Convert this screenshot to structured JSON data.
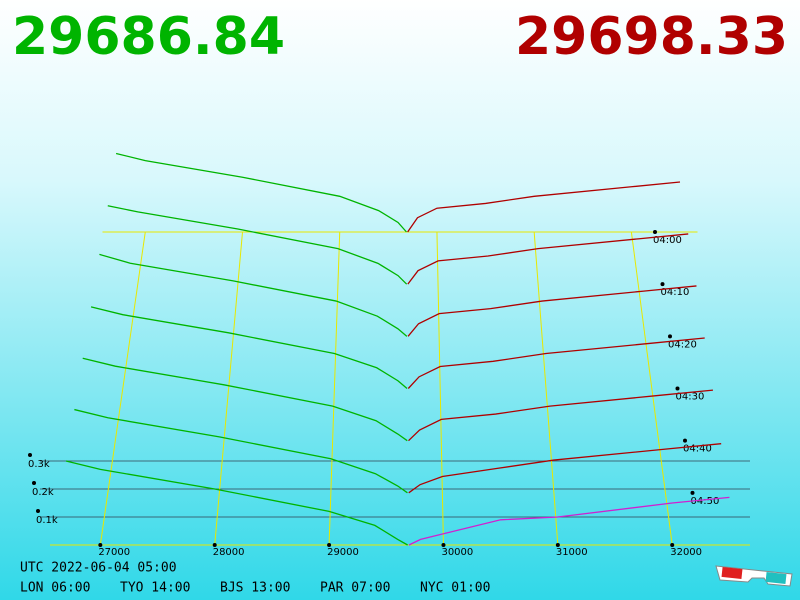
{
  "chart_data": {
    "type": "depth3d",
    "bid": 29686.84,
    "ask": 29698.33,
    "bid_color": "#00b400",
    "ask_color": "#b00000",
    "latest_ask_color": "#d020d0",
    "xlim": [
      26560,
      32680
    ],
    "xticks": [
      27000,
      28000,
      29000,
      30000,
      31000,
      32000
    ],
    "zlim": [
      0,
      400
    ],
    "zticks": [
      {
        "value": 100,
        "label": "0.1k"
      },
      {
        "value": 200,
        "label": "0.2k"
      },
      {
        "value": 300,
        "label": "0.3k"
      }
    ],
    "tlim": [
      0,
      60
    ],
    "tticks": [
      {
        "value": 0,
        "label": "04:00"
      },
      {
        "value": 10,
        "label": "04:10"
      },
      {
        "value": 20,
        "label": "04:20"
      },
      {
        "value": 30,
        "label": "04:30"
      },
      {
        "value": 40,
        "label": "04:40"
      },
      {
        "value": 50,
        "label": "04:50"
      }
    ],
    "bid_prices": [
      26700,
      27000,
      28000,
      29000,
      29400,
      29600,
      29686.84
    ],
    "ask_prices": [
      29698.33,
      29800,
      30000,
      30500,
      31000,
      32000,
      32500
    ],
    "snapshots": [
      {
        "t": 0,
        "bids": [
          330,
          300,
          230,
          150,
          90,
          40,
          0
        ],
        "asks": [
          0,
          60,
          100,
          120,
          150,
          190,
          210
        ]
      },
      {
        "t": 10,
        "bids": [
          320,
          295,
          225,
          145,
          85,
          35,
          0
        ],
        "asks": [
          0,
          55,
          95,
          115,
          145,
          185,
          205
        ]
      },
      {
        "t": 20,
        "bids": [
          325,
          290,
          220,
          140,
          80,
          30,
          0
        ],
        "asks": [
          0,
          50,
          90,
          110,
          140,
          180,
          200
        ]
      },
      {
        "t": 30,
        "bids": [
          315,
          285,
          215,
          135,
          80,
          30,
          0
        ],
        "asks": [
          0,
          45,
          85,
          105,
          135,
          175,
          195
        ]
      },
      {
        "t": 40,
        "bids": [
          310,
          280,
          210,
          130,
          75,
          25,
          0
        ],
        "asks": [
          0,
          40,
          80,
          100,
          130,
          170,
          190
        ]
      },
      {
        "t": 50,
        "bids": [
          305,
          275,
          205,
          125,
          70,
          25,
          0
        ],
        "asks": [
          0,
          30,
          60,
          90,
          120,
          160,
          180
        ]
      },
      {
        "t": 60,
        "bids": [
          300,
          270,
          200,
          120,
          70,
          20,
          0
        ],
        "asks": [
          0,
          20,
          40,
          90,
          100,
          150,
          170
        ]
      }
    ],
    "footer": {
      "utc": "UTC 2022-06-04 05:00",
      "cities": [
        "LON 06:00",
        "TYO 14:00",
        "BJS 13:00",
        "PAR 07:00",
        "NYC 01:00"
      ]
    }
  }
}
